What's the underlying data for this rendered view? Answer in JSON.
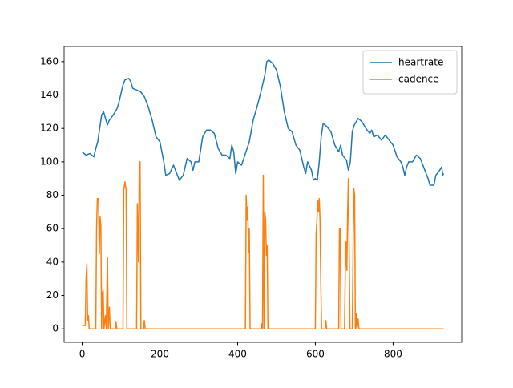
{
  "chart_data": {
    "type": "line",
    "xlim": [
      -46.5,
      976.5
    ],
    "ylim": [
      -8.05,
      169.05
    ],
    "xticks": [
      0,
      200,
      400,
      600,
      800
    ],
    "yticks": [
      0,
      20,
      40,
      60,
      80,
      100,
      120,
      140,
      160
    ],
    "legend": "upper right",
    "series": [
      {
        "name": "heartrate",
        "color": "#1f77b4",
        "x": [
          0,
          10,
          20,
          30,
          35,
          40,
          45,
          50,
          55,
          60,
          65,
          70,
          80,
          90,
          95,
          105,
          110,
          120,
          125,
          130,
          140,
          150,
          160,
          170,
          180,
          185,
          190,
          200,
          210,
          215,
          225,
          235,
          240,
          250,
          260,
          270,
          280,
          285,
          290,
          300,
          310,
          320,
          330,
          340,
          350,
          360,
          370,
          380,
          385,
          390,
          395,
          400,
          410,
          420,
          430,
          440,
          450,
          460,
          470,
          475,
          480,
          490,
          500,
          510,
          520,
          530,
          540,
          550,
          560,
          570,
          575,
          580,
          590,
          595,
          600,
          605,
          610,
          615,
          620,
          630,
          640,
          650,
          660,
          665,
          670,
          680,
          685,
          690,
          695,
          700,
          710,
          720,
          730,
          740,
          745,
          750,
          760,
          770,
          780,
          790,
          800,
          810,
          820,
          825,
          830,
          835,
          840,
          850,
          860,
          870,
          880,
          890,
          895,
          905,
          910,
          920,
          925,
          928,
          930
        ],
        "values": [
          106,
          104,
          105,
          103,
          108,
          112,
          120,
          128,
          130,
          126,
          122,
          125,
          128,
          132,
          136,
          146,
          149,
          150,
          148,
          144,
          143,
          142,
          139,
          133,
          125,
          120,
          115,
          112,
          100,
          92,
          93,
          98,
          95,
          89,
          92,
          102,
          100,
          95,
          100,
          100,
          115,
          119,
          119,
          117,
          108,
          104,
          104,
          102,
          110,
          106,
          93,
          100,
          98,
          105,
          112,
          125,
          133,
          142,
          152,
          160,
          161,
          159,
          155,
          145,
          130,
          120,
          118,
          110,
          107,
          97,
          93,
          100,
          95,
          89,
          90,
          89,
          100,
          115,
          123,
          121,
          118,
          110,
          106,
          110,
          104,
          101,
          95,
          100,
          118,
          122,
          126,
          124,
          120,
          117,
          119,
          115,
          116,
          113,
          116,
          113,
          110,
          103,
          100,
          97,
          92,
          97,
          100,
          100,
          104,
          102,
          96,
          90,
          86,
          86,
          92,
          95,
          97,
          92,
          93
        ]
      },
      {
        "name": "cadence",
        "color": "#ff7f0e",
        "x": [
          0,
          8,
          10,
          12,
          14,
          16,
          18,
          35,
          37,
          39,
          42,
          44,
          46,
          48,
          50,
          52,
          54,
          56,
          60,
          62,
          65,
          67,
          70,
          72,
          85,
          87,
          89,
          105,
          107,
          110,
          113,
          115,
          140,
          142,
          145,
          147,
          149,
          151,
          158,
          160,
          162,
          420,
          422,
          424,
          426,
          428,
          430,
          432,
          460,
          462,
          464,
          466,
          468,
          470,
          472,
          474,
          476,
          478,
          600,
          602,
          604,
          606,
          608,
          610,
          612,
          614,
          616,
          625,
          627,
          629,
          660,
          662,
          664,
          666,
          675,
          677,
          679,
          681,
          683,
          685,
          687,
          689,
          695,
          697,
          699,
          701,
          703,
          705,
          707,
          710,
          712,
          930
        ],
        "values": [
          2,
          2,
          30,
          39,
          5,
          8,
          0,
          0,
          60,
          78,
          78,
          45,
          67,
          62,
          0,
          22,
          23,
          0,
          8,
          0,
          43,
          0,
          13,
          0,
          0,
          4,
          0,
          0,
          83,
          88,
          83,
          0,
          0,
          75,
          40,
          100,
          100,
          0,
          0,
          5,
          0,
          0,
          80,
          65,
          73,
          46,
          60,
          0,
          0,
          3,
          0,
          92,
          0,
          70,
          65,
          44,
          50,
          0,
          0,
          57,
          65,
          77,
          70,
          78,
          65,
          28,
          0,
          0,
          5,
          0,
          0,
          60,
          60,
          0,
          0,
          35,
          52,
          35,
          70,
          90,
          45,
          0,
          0,
          45,
          84,
          80,
          0,
          9,
          0,
          6,
          0,
          0
        ]
      }
    ]
  }
}
